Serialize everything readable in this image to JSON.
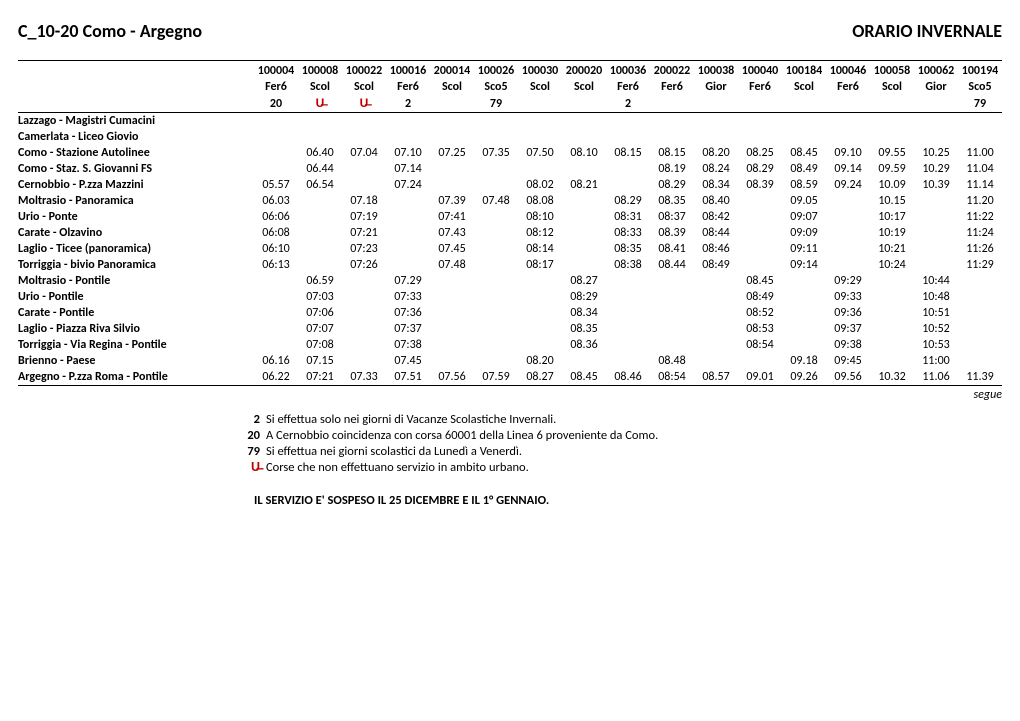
{
  "header": {
    "route": "C_10-20    Como - Argegno",
    "season": "ORARIO INVERNALE"
  },
  "runs": [
    {
      "id": "100004",
      "day": "Fer6",
      "note": "20",
      "urbano": false
    },
    {
      "id": "100008",
      "day": "Scol",
      "note": "",
      "urbano": true
    },
    {
      "id": "100022",
      "day": "Scol",
      "note": "",
      "urbano": true
    },
    {
      "id": "100016",
      "day": "Fer6",
      "note": "2",
      "urbano": false
    },
    {
      "id": "200014",
      "day": "Scol",
      "note": "",
      "urbano": false
    },
    {
      "id": "100026",
      "day": "Sco5",
      "note": "79",
      "urbano": false
    },
    {
      "id": "100030",
      "day": "Scol",
      "note": "",
      "urbano": false
    },
    {
      "id": "200020",
      "day": "Scol",
      "note": "",
      "urbano": false
    },
    {
      "id": "100036",
      "day": "Fer6",
      "note": "2",
      "urbano": false
    },
    {
      "id": "200022",
      "day": "Fer6",
      "note": "",
      "urbano": false
    },
    {
      "id": "100038",
      "day": "Gior",
      "note": "",
      "urbano": false
    },
    {
      "id": "100040",
      "day": "Fer6",
      "note": "",
      "urbano": false
    },
    {
      "id": "100184",
      "day": "Scol",
      "note": "",
      "urbano": false
    },
    {
      "id": "100046",
      "day": "Fer6",
      "note": "",
      "urbano": false
    },
    {
      "id": "100058",
      "day": "Scol",
      "note": "",
      "urbano": false
    },
    {
      "id": "100062",
      "day": "Gior",
      "note": "",
      "urbano": false
    },
    {
      "id": "100194",
      "day": "Sco5",
      "note": "79",
      "urbano": false
    }
  ],
  "stops": [
    {
      "name": "Lazzago - Magistri Cumacini",
      "t": [
        "",
        "",
        "",
        "",
        "",
        "",
        "",
        "",
        "",
        "",
        "",
        "",
        "",
        "",
        "",
        "",
        ""
      ]
    },
    {
      "name": "Camerlata - Liceo Giovio",
      "t": [
        "",
        "",
        "",
        "",
        "",
        "",
        "",
        "",
        "",
        "",
        "",
        "",
        "",
        "",
        "",
        "",
        ""
      ]
    },
    {
      "name": "Como - Stazione Autolinee",
      "t": [
        "",
        "06.40",
        "07.04",
        "07.10",
        "07.25",
        "07.35",
        "07.50",
        "08.10",
        "08.15",
        "08.15",
        "08.20",
        "08.25",
        "08.45",
        "09.10",
        "09.55",
        "10.25",
        "11.00"
      ]
    },
    {
      "name": "Como - Staz. S. Giovanni FS",
      "t": [
        "",
        "06.44",
        "",
        "07.14",
        "",
        "",
        "",
        "",
        "",
        "08.19",
        "08.24",
        "08.29",
        "08.49",
        "09.14",
        "09.59",
        "10.29",
        "11.04"
      ]
    },
    {
      "name": "Cernobbio - P.zza Mazzini",
      "t": [
        "05.57",
        "06.54",
        "",
        "07.24",
        "",
        "",
        "08.02",
        "08.21",
        "",
        "08.29",
        "08.34",
        "08.39",
        "08.59",
        "09.24",
        "10.09",
        "10.39",
        "11.14"
      ]
    },
    {
      "name": "Moltrasio - Panoramica",
      "t": [
        "06.03",
        "",
        "07.18",
        "",
        "07.39",
        "07.48",
        "08.08",
        "",
        "08.29",
        "08.35",
        "08.40",
        "",
        "09.05",
        "",
        "10.15",
        "",
        "11.20"
      ]
    },
    {
      "name": "Urio - Ponte",
      "t": [
        "06:06",
        "",
        "07:19",
        "",
        "07:41",
        "",
        "08:10",
        "",
        "08:31",
        "08:37",
        "08:42",
        "",
        "09:07",
        "",
        "10:17",
        "",
        "11:22"
      ]
    },
    {
      "name": "Carate - Olzavino",
      "t": [
        "06:08",
        "",
        "07:21",
        "",
        "07.43",
        "",
        "08:12",
        "",
        "08:33",
        "08.39",
        "08:44",
        "",
        "09:09",
        "",
        "10:19",
        "",
        "11:24"
      ]
    },
    {
      "name": "Laglio - Ticee (panoramica)",
      "t": [
        "06:10",
        "",
        "07:23",
        "",
        "07.45",
        "",
        "08:14",
        "",
        "08:35",
        "08.41",
        "08:46",
        "",
        "09:11",
        "",
        "10:21",
        "",
        "11:26"
      ]
    },
    {
      "name": "Torriggia - bivio Panoramica",
      "t": [
        "06:13",
        "",
        "07:26",
        "",
        "07.48",
        "",
        "08:17",
        "",
        "08:38",
        "08.44",
        "08:49",
        "",
        "09:14",
        "",
        "10:24",
        "",
        "11:29"
      ]
    },
    {
      "name": "Moltrasio - Pontile",
      "t": [
        "",
        "06.59",
        "",
        "07.29",
        "",
        "",
        "",
        "08.27",
        "",
        "",
        "",
        "08.45",
        "",
        "09:29",
        "",
        "10:44",
        ""
      ]
    },
    {
      "name": "Urio - Pontile",
      "t": [
        "",
        "07:03",
        "",
        "07:33",
        "",
        "",
        "",
        "08:29",
        "",
        "",
        "",
        "08:49",
        "",
        "09:33",
        "",
        "10:48",
        ""
      ]
    },
    {
      "name": "Carate - Pontile",
      "t": [
        "",
        "07:06",
        "",
        "07:36",
        "",
        "",
        "",
        "08.34",
        "",
        "",
        "",
        "08:52",
        "",
        "09:36",
        "",
        "10:51",
        ""
      ]
    },
    {
      "name": "Laglio - Piazza Riva Silvio",
      "t": [
        "",
        "07:07",
        "",
        "07:37",
        "",
        "",
        "",
        "08.35",
        "",
        "",
        "",
        "08:53",
        "",
        "09:37",
        "",
        "10:52",
        ""
      ]
    },
    {
      "name": "Torriggia - Via Regina - Pontile",
      "t": [
        "",
        "07:08",
        "",
        "07:38",
        "",
        "",
        "",
        "08.36",
        "",
        "",
        "",
        "08:54",
        "",
        "09:38",
        "",
        "10:53",
        ""
      ]
    },
    {
      "name": "Brienno - Paese",
      "t": [
        "06.16",
        "07.15",
        "",
        "07.45",
        "",
        "",
        "08.20",
        "",
        "",
        "08.48",
        "",
        "",
        "09.18",
        "09:45",
        "",
        "11:00",
        ""
      ]
    },
    {
      "name": "Argegno - P.zza Roma - Pontile",
      "t": [
        "06.22",
        "07:21",
        "07.33",
        "07.51",
        "07.56",
        "07.59",
        "08.27",
        "08.45",
        "08.46",
        "08:54",
        "08.57",
        "09.01",
        "09.26",
        "09.56",
        "10.32",
        "11.06",
        "11.39"
      ]
    }
  ],
  "segue": "segue",
  "legend": [
    {
      "key": "2",
      "text": "Si effettua solo nei giorni di Vacanze Scolastiche Invernali."
    },
    {
      "key": "20",
      "text": "A Cernobbio coincidenza con corsa 60001 della Linea 6 proveniente da Como."
    },
    {
      "key": "79",
      "text": "Si effettua nei giorni scolastici da Lunedì a Venerdì."
    },
    {
      "key": "urbano",
      "text": "Corse che non effettuano servizio in ambito urbano."
    }
  ],
  "suspension": "IL SERVIZIO E' SOSPESO IL 25 DICEMBRE E IL 1° GENNAIO.",
  "style": {
    "urbano_color": "#c00000",
    "rule_color": "#000000",
    "font_family": "Calibri"
  }
}
